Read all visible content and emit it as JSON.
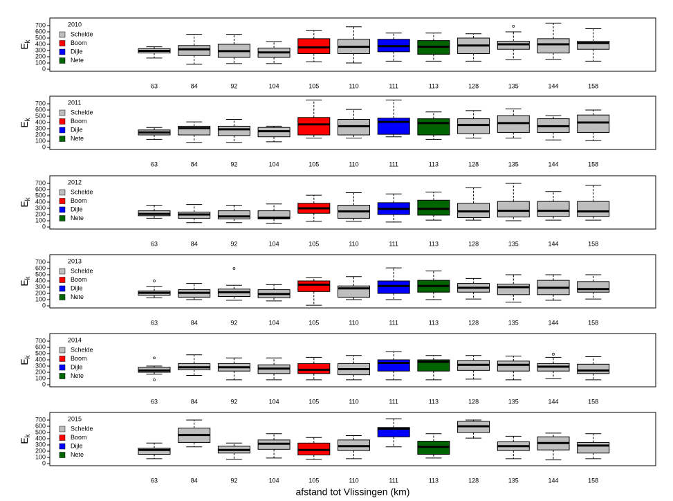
{
  "x_label": "afstand tot Vlissingen (km)",
  "chart_data": [
    {
      "type": "boxplot",
      "title": "2010",
      "y_label": "E",
      "y_label_sub": "k",
      "categories": [
        "63",
        "84",
        "92",
        "104",
        "105",
        "110",
        "111",
        "113",
        "128",
        "135",
        "144",
        "158"
      ],
      "box_colors": [
        "#bebebe",
        "#bebebe",
        "#bebebe",
        "#bebebe",
        "#ff0000",
        "#bebebe",
        "#0000ff",
        "#006400",
        "#bebebe",
        "#bebebe",
        "#bebebe",
        "#bebebe"
      ],
      "low": [
        180,
        80,
        90,
        90,
        120,
        100,
        130,
        130,
        130,
        150,
        160,
        130
      ],
      "q1": [
        260,
        220,
        190,
        190,
        250,
        250,
        280,
        240,
        250,
        320,
        260,
        320
      ],
      "median": [
        295,
        320,
        290,
        270,
        350,
        360,
        370,
        360,
        380,
        400,
        400,
        420
      ],
      "q3": [
        330,
        380,
        400,
        340,
        490,
        480,
        480,
        460,
        500,
        450,
        490,
        450
      ],
      "high": [
        360,
        560,
        560,
        440,
        620,
        680,
        580,
        580,
        570,
        600,
        740,
        650
      ],
      "outliers": [
        [],
        [],
        [],
        [],
        [],
        [],
        [],
        [],
        [],
        [
          690
        ],
        [],
        []
      ],
      "ylim": [
        -33,
        822
      ],
      "yticks": [
        0,
        100,
        200,
        300,
        400,
        500,
        600,
        700
      ],
      "legend_position": "upper left",
      "legend": [
        {
          "name": "Schelde",
          "color": "#bebebe"
        },
        {
          "name": "Boom",
          "color": "#ff0000"
        },
        {
          "name": "Dijle",
          "color": "#0000ff"
        },
        {
          "name": "Nete",
          "color": "#006400"
        }
      ]
    },
    {
      "type": "boxplot",
      "title": "2011",
      "y_label": "E",
      "y_label_sub": "k",
      "categories": [
        "63",
        "84",
        "92",
        "104",
        "105",
        "110",
        "111",
        "113",
        "128",
        "135",
        "144",
        "158"
      ],
      "box_colors": [
        "#bebebe",
        "#bebebe",
        "#bebebe",
        "#bebebe",
        "#ff0000",
        "#bebebe",
        "#0000ff",
        "#006400",
        "#bebebe",
        "#bebebe",
        "#bebebe",
        "#bebebe"
      ],
      "low": [
        130,
        80,
        80,
        90,
        150,
        150,
        170,
        130,
        150,
        150,
        120,
        110
      ],
      "q1": [
        200,
        200,
        190,
        170,
        200,
        200,
        210,
        200,
        220,
        240,
        240,
        240
      ],
      "median": [
        240,
        310,
        290,
        260,
        370,
        340,
        410,
        390,
        360,
        390,
        340,
        400
      ],
      "q3": [
        280,
        340,
        340,
        320,
        480,
        450,
        470,
        460,
        460,
        510,
        460,
        520
      ],
      "high": [
        320,
        410,
        450,
        340,
        760,
        610,
        760,
        570,
        590,
        620,
        510,
        600
      ],
      "outliers": [
        [],
        [],
        [],
        [],
        [],
        [],
        [],
        [],
        [],
        [],
        [],
        []
      ],
      "ylim": [
        -33,
        822
      ],
      "yticks": [
        0,
        100,
        200,
        300,
        400,
        500,
        600,
        700
      ],
      "legend_position": "upper left",
      "legend": [
        {
          "name": "Schelde",
          "color": "#bebebe"
        },
        {
          "name": "Boom",
          "color": "#ff0000"
        },
        {
          "name": "Dijle",
          "color": "#0000ff"
        },
        {
          "name": "Nete",
          "color": "#006400"
        }
      ]
    },
    {
      "type": "boxplot",
      "title": "2012",
      "y_label": "E",
      "y_label_sub": "k",
      "categories": [
        "63",
        "84",
        "92",
        "104",
        "105",
        "110",
        "111",
        "113",
        "128",
        "135",
        "144",
        "158"
      ],
      "box_colors": [
        "#bebebe",
        "#bebebe",
        "#bebebe",
        "#bebebe",
        "#ff0000",
        "#bebebe",
        "#0000ff",
        "#006400",
        "#bebebe",
        "#bebebe",
        "#bebebe",
        "#bebebe"
      ],
      "low": [
        140,
        70,
        70,
        60,
        90,
        90,
        80,
        110,
        110,
        100,
        110,
        110
      ],
      "q1": [
        180,
        140,
        130,
        130,
        220,
        140,
        200,
        190,
        150,
        160,
        170,
        170
      ],
      "median": [
        210,
        200,
        170,
        150,
        300,
        250,
        290,
        290,
        250,
        260,
        260,
        250
      ],
      "q3": [
        260,
        240,
        260,
        260,
        380,
        350,
        390,
        430,
        380,
        410,
        410,
        410
      ],
      "high": [
        350,
        360,
        350,
        370,
        510,
        550,
        530,
        560,
        630,
        700,
        570,
        670
      ],
      "outliers": [
        [],
        [],
        [],
        [],
        [],
        [],
        [],
        [],
        [],
        [],
        [],
        []
      ],
      "ylim": [
        -33,
        822
      ],
      "yticks": [
        0,
        100,
        200,
        300,
        400,
        500,
        600,
        700
      ],
      "legend_position": "upper left",
      "legend": [
        {
          "name": "Schelde",
          "color": "#bebebe"
        },
        {
          "name": "Boom",
          "color": "#ff0000"
        },
        {
          "name": "Dijle",
          "color": "#0000ff"
        },
        {
          "name": "Nete",
          "color": "#006400"
        }
      ]
    },
    {
      "type": "boxplot",
      "title": "2013",
      "y_label": "E",
      "y_label_sub": "k",
      "categories": [
        "63",
        "84",
        "92",
        "104",
        "105",
        "110",
        "111",
        "113",
        "128",
        "135",
        "144",
        "158"
      ],
      "box_colors": [
        "#bebebe",
        "#bebebe",
        "#bebebe",
        "#bebebe",
        "#ff0000",
        "#bebebe",
        "#0000ff",
        "#006400",
        "#bebebe",
        "#bebebe",
        "#bebebe",
        "#bebebe"
      ],
      "low": [
        130,
        100,
        90,
        80,
        10,
        100,
        100,
        100,
        110,
        60,
        90,
        110
      ],
      "q1": [
        170,
        140,
        150,
        130,
        230,
        140,
        200,
        220,
        220,
        180,
        180,
        220
      ],
      "median": [
        210,
        210,
        220,
        190,
        340,
        280,
        320,
        320,
        290,
        300,
        290,
        270
      ],
      "q3": [
        240,
        260,
        270,
        260,
        400,
        320,
        400,
        410,
        360,
        350,
        410,
        390
      ],
      "high": [
        310,
        360,
        330,
        340,
        450,
        470,
        610,
        560,
        440,
        500,
        500,
        500
      ],
      "outliers": [
        [
          400
        ],
        [],
        [
          600
        ],
        [],
        [],
        [],
        [],
        [],
        [],
        [],
        [],
        []
      ],
      "ylim": [
        -33,
        822
      ],
      "yticks": [
        0,
        100,
        200,
        300,
        400,
        500,
        600,
        700
      ],
      "legend_position": "upper left",
      "legend": [
        {
          "name": "Schelde",
          "color": "#bebebe"
        },
        {
          "name": "Boom",
          "color": "#ff0000"
        },
        {
          "name": "Dijle",
          "color": "#0000ff"
        },
        {
          "name": "Nete",
          "color": "#006400"
        }
      ]
    },
    {
      "type": "boxplot",
      "title": "2014",
      "y_label": "E",
      "y_label_sub": "k",
      "categories": [
        "63",
        "84",
        "92",
        "104",
        "105",
        "110",
        "111",
        "113",
        "128",
        "135",
        "144",
        "158"
      ],
      "box_colors": [
        "#bebebe",
        "#bebebe",
        "#bebebe",
        "#bebebe",
        "#ff0000",
        "#bebebe",
        "#0000ff",
        "#006400",
        "#bebebe",
        "#bebebe",
        "#bebebe",
        "#bebebe"
      ],
      "low": [
        170,
        150,
        80,
        80,
        80,
        80,
        80,
        80,
        90,
        80,
        100,
        80
      ],
      "q1": [
        200,
        240,
        220,
        180,
        180,
        160,
        220,
        220,
        230,
        220,
        220,
        180
      ],
      "median": [
        230,
        280,
        280,
        260,
        240,
        250,
        350,
        370,
        320,
        320,
        290,
        230
      ],
      "q3": [
        280,
        340,
        340,
        320,
        340,
        340,
        400,
        400,
        390,
        380,
        340,
        330
      ],
      "high": [
        300,
        480,
        430,
        430,
        440,
        470,
        530,
        470,
        470,
        460,
        440,
        450
      ],
      "outliers": [
        [
          430,
          80
        ],
        [],
        [],
        [],
        [],
        [],
        [],
        [],
        [],
        [],
        [
          490
        ],
        []
      ],
      "ylim": [
        -33,
        822
      ],
      "yticks": [
        0,
        100,
        200,
        300,
        400,
        500,
        600,
        700
      ],
      "legend_position": "upper left",
      "legend": [
        {
          "name": "Schelde",
          "color": "#bebebe"
        },
        {
          "name": "Boom",
          "color": "#ff0000"
        },
        {
          "name": "Dijle",
          "color": "#0000ff"
        },
        {
          "name": "Nete",
          "color": "#006400"
        }
      ]
    },
    {
      "type": "boxplot",
      "title": "2015",
      "y_label": "E",
      "y_label_sub": "k",
      "categories": [
        "63",
        "84",
        "92",
        "104",
        "105",
        "110",
        "111",
        "113",
        "128",
        "135",
        "144",
        "158"
      ],
      "box_colors": [
        "#bebebe",
        "#bebebe",
        "#bebebe",
        "#bebebe",
        "#ff0000",
        "#bebebe",
        "#0000ff",
        "#006400",
        "#bebebe",
        "#bebebe",
        "#bebebe",
        "#bebebe"
      ],
      "low": [
        80,
        270,
        70,
        90,
        70,
        80,
        270,
        90,
        410,
        80,
        60,
        80
      ],
      "q1": [
        150,
        340,
        170,
        230,
        140,
        210,
        430,
        150,
        500,
        210,
        220,
        170
      ],
      "median": [
        220,
        460,
        220,
        320,
        220,
        280,
        560,
        270,
        600,
        280,
        330,
        290
      ],
      "q3": [
        250,
        570,
        280,
        380,
        330,
        380,
        580,
        360,
        680,
        350,
        430,
        340
      ],
      "high": [
        330,
        700,
        330,
        480,
        420,
        450,
        720,
        480,
        700,
        440,
        490,
        480
      ],
      "outliers": [
        [],
        [],
        [],
        [],
        [],
        [],
        [],
        [],
        [],
        [],
        [],
        []
      ],
      "ylim": [
        -33,
        822
      ],
      "yticks": [
        0,
        100,
        200,
        300,
        400,
        500,
        600,
        700
      ],
      "legend_position": "upper left",
      "legend": [
        {
          "name": "Schelde",
          "color": "#bebebe"
        },
        {
          "name": "Boom",
          "color": "#ff0000"
        },
        {
          "name": "Dijle",
          "color": "#0000ff"
        },
        {
          "name": "Nete",
          "color": "#006400"
        }
      ]
    }
  ]
}
